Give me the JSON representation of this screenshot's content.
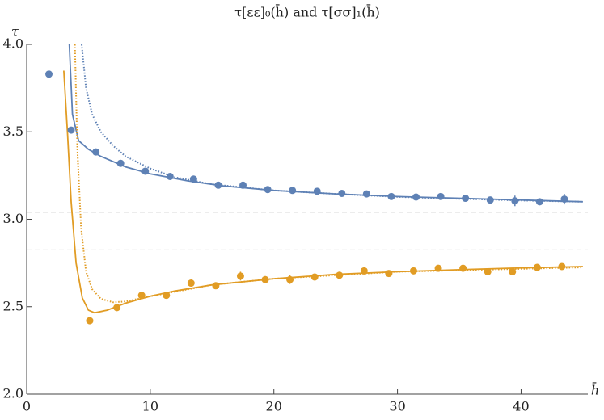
{
  "chart_data": {
    "type": "scatter-line",
    "title": "τ[εε]₀(h̄) and τ[σσ]₁(h̄)",
    "x_label": "h̄",
    "y_label": "τ",
    "xlim": [
      0,
      45.4
    ],
    "ylim": [
      2,
      4
    ],
    "xticks": [
      0,
      10,
      20,
      30,
      40
    ],
    "yticks": [
      {
        "value": 2,
        "label": "2.0"
      },
      {
        "value": 2.5,
        "label": "2.5"
      },
      {
        "value": 3,
        "label": "3.0"
      },
      {
        "value": 3.5,
        "label": "3.5"
      },
      {
        "value": 4,
        "label": "4.0"
      }
    ],
    "hlines": [
      3.04,
      2.825
    ],
    "series": [
      {
        "kind": "points",
        "color": "#5e81b5",
        "x": [
          1.8,
          3.6,
          5.6,
          7.6,
          9.6,
          11.6,
          13.5,
          15.5,
          17.5,
          19.5,
          21.5,
          23.5,
          25.5,
          27.5,
          29.5,
          31.5,
          33.5,
          35.5,
          37.5,
          39.5,
          41.5,
          43.5
        ],
        "values": [
          3.83,
          3.51,
          3.385,
          3.32,
          3.275,
          3.245,
          3.23,
          3.195,
          3.195,
          3.17,
          3.165,
          3.16,
          3.148,
          3.145,
          3.13,
          3.127,
          3.13,
          3.12,
          3.11,
          3.105,
          3.1,
          3.115
        ],
        "errors": [
          null,
          null,
          null,
          null,
          null,
          null,
          null,
          null,
          null,
          null,
          null,
          null,
          null,
          null,
          null,
          null,
          null,
          null,
          null,
          0.03,
          null,
          0.03
        ]
      },
      {
        "kind": "points",
        "color": "#e19c24",
        "x": [
          5.1,
          7.3,
          9.3,
          11.3,
          13.3,
          15.3,
          17.3,
          19.3,
          21.3,
          23.3,
          25.3,
          27.3,
          29.3,
          31.3,
          33.3,
          35.3,
          37.3,
          39.3,
          41.3,
          43.3
        ],
        "values": [
          2.42,
          2.495,
          2.565,
          2.565,
          2.635,
          2.62,
          2.675,
          2.655,
          2.655,
          2.67,
          2.68,
          2.705,
          2.69,
          2.705,
          2.72,
          2.72,
          2.7,
          2.7,
          2.725,
          2.73
        ],
        "errors": [
          null,
          null,
          null,
          null,
          0.02,
          null,
          0.025,
          0.02,
          0.025,
          null,
          null,
          0.02,
          null,
          null,
          null,
          null,
          null,
          null,
          null,
          null
        ]
      },
      {
        "kind": "line",
        "style": "solid",
        "color": "#5e81b5",
        "x": [
          3.45,
          3.7,
          4.2,
          5,
          6,
          8,
          10,
          13,
          16,
          20,
          25,
          30,
          35,
          40,
          45
        ],
        "values": [
          4.0,
          3.6,
          3.45,
          3.4,
          3.36,
          3.3,
          3.26,
          3.22,
          3.19,
          3.165,
          3.145,
          3.13,
          3.12,
          3.11,
          3.1
        ]
      },
      {
        "kind": "line",
        "style": "dotted",
        "color": "#5e81b5",
        "x": [
          4.45,
          4.8,
          5.3,
          6,
          7,
          8,
          10,
          12,
          15,
          20,
          25,
          30,
          35,
          40,
          45
        ],
        "values": [
          4.0,
          3.75,
          3.6,
          3.5,
          3.42,
          3.36,
          3.29,
          3.24,
          3.2,
          3.165,
          3.145,
          3.128,
          3.117,
          3.107,
          3.1
        ]
      },
      {
        "kind": "line",
        "style": "solid",
        "color": "#e19c24",
        "x": [
          3.0,
          3.3,
          3.6,
          4.0,
          4.5,
          5.0,
          5.5,
          6.5,
          8,
          10,
          12,
          15,
          20,
          25,
          30,
          35,
          40,
          45
        ],
        "values": [
          3.85,
          3.5,
          3.1,
          2.75,
          2.55,
          2.48,
          2.465,
          2.48,
          2.52,
          2.56,
          2.59,
          2.625,
          2.66,
          2.685,
          2.7,
          2.712,
          2.722,
          2.73
        ]
      },
      {
        "kind": "line",
        "style": "dotted",
        "color": "#e19c24",
        "x": [
          3.9,
          4.1,
          4.4,
          4.8,
          5.3,
          6,
          7,
          8,
          10,
          15,
          20,
          30,
          45
        ],
        "values": [
          4.0,
          3.4,
          2.95,
          2.7,
          2.6,
          2.545,
          2.525,
          2.53,
          2.56,
          2.625,
          2.66,
          2.7,
          2.725
        ]
      }
    ]
  }
}
